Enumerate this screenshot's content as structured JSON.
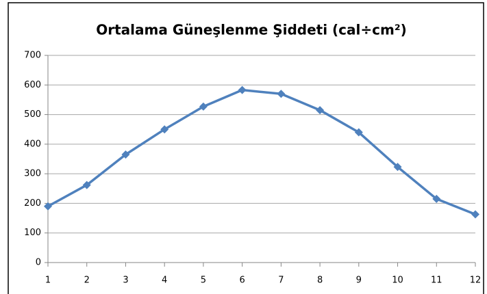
{
  "chart_data": {
    "type": "line",
    "title": "Ortalama Güneşlenme  Şiddeti (cal÷cm²)",
    "x": [
      1,
      2,
      3,
      4,
      5,
      6,
      7,
      8,
      9,
      10,
      11,
      12
    ],
    "series": [
      {
        "name": "Ortalama Güneşlenme Şiddeti",
        "color": "#4f81bd",
        "values": [
          190,
          262,
          365,
          450,
          527,
          583,
          570,
          515,
          440,
          323,
          215,
          163
        ]
      }
    ],
    "xlim": [
      1,
      12
    ],
    "xticks": [
      1,
      2,
      3,
      4,
      5,
      6,
      7,
      8,
      9,
      10,
      11,
      12
    ],
    "ylim": [
      0,
      700
    ],
    "yticks": [
      0,
      100,
      200,
      300,
      400,
      500,
      600,
      700
    ],
    "grid": true
  }
}
